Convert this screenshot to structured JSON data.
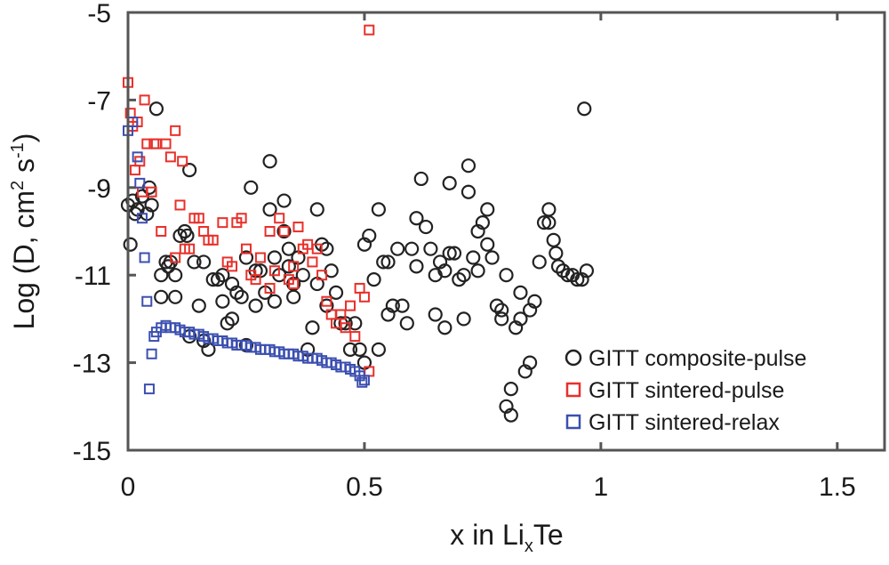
{
  "chart_data": {
    "type": "scatter",
    "title": "",
    "xlabel": {
      "main": "x in Li",
      "sub": "x",
      "tail": "Te"
    },
    "ylabel": {
      "main": "Log (D, cm",
      "sup1": "2",
      "mid": " s",
      "sup2": "-1",
      "end": ")"
    },
    "xlim": [
      0,
      1.6
    ],
    "ylim": [
      -15,
      -5
    ],
    "xticks": [
      {
        "v": 0,
        "label": "0"
      },
      {
        "v": 0.5,
        "label": "0.5"
      },
      {
        "v": 1,
        "label": "1"
      },
      {
        "v": 1.5,
        "label": "1.5"
      }
    ],
    "yticks": [
      {
        "v": -5,
        "label": "-5"
      },
      {
        "v": -7,
        "label": "-7"
      },
      {
        "v": -9,
        "label": "-9"
      },
      {
        "v": -11,
        "label": "-11"
      },
      {
        "v": -13,
        "label": "-13"
      },
      {
        "v": -15,
        "label": "-15"
      }
    ],
    "grid": false,
    "legend_position": "bottom-right",
    "series": [
      {
        "name": "GITT composite-pulse",
        "marker": "circle",
        "color": "#222222",
        "points": [
          [
            0.0,
            -9.4
          ],
          [
            0.005,
            -10.3
          ],
          [
            0.01,
            -9.3
          ],
          [
            0.015,
            -9.6
          ],
          [
            0.02,
            -9.5
          ],
          [
            0.03,
            -9.2
          ],
          [
            0.04,
            -9.6
          ],
          [
            0.045,
            -9.0
          ],
          [
            0.05,
            -9.4
          ],
          [
            0.06,
            -7.2
          ],
          [
            0.07,
            -11.0
          ],
          [
            0.07,
            -11.5
          ],
          [
            0.08,
            -10.7
          ],
          [
            0.085,
            -10.8
          ],
          [
            0.09,
            -10.7
          ],
          [
            0.1,
            -11.0
          ],
          [
            0.1,
            -11.5
          ],
          [
            0.11,
            -10.1
          ],
          [
            0.12,
            -10.0
          ],
          [
            0.125,
            -10.1
          ],
          [
            0.13,
            -8.6
          ],
          [
            0.13,
            -12.4
          ],
          [
            0.14,
            -10.7
          ],
          [
            0.15,
            -11.7
          ],
          [
            0.16,
            -10.7
          ],
          [
            0.16,
            -12.5
          ],
          [
            0.17,
            -12.7
          ],
          [
            0.18,
            -11.1
          ],
          [
            0.19,
            -11.1
          ],
          [
            0.2,
            -11.0
          ],
          [
            0.2,
            -11.6
          ],
          [
            0.21,
            -12.1
          ],
          [
            0.22,
            -12.0
          ],
          [
            0.22,
            -11.2
          ],
          [
            0.23,
            -11.4
          ],
          [
            0.24,
            -11.5
          ],
          [
            0.25,
            -10.6
          ],
          [
            0.25,
            -12.6
          ],
          [
            0.26,
            -9.0
          ],
          [
            0.27,
            -10.9
          ],
          [
            0.27,
            -11.7
          ],
          [
            0.28,
            -10.9
          ],
          [
            0.29,
            -11.4
          ],
          [
            0.3,
            -8.4
          ],
          [
            0.3,
            -9.5
          ],
          [
            0.31,
            -10.6
          ],
          [
            0.31,
            -11.6
          ],
          [
            0.32,
            -11.0
          ],
          [
            0.33,
            -9.3
          ],
          [
            0.33,
            -10.0
          ],
          [
            0.34,
            -10.4
          ],
          [
            0.34,
            -10.8
          ],
          [
            0.35,
            -11.2
          ],
          [
            0.35,
            -11.5
          ],
          [
            0.36,
            -10.6
          ],
          [
            0.37,
            -11.0
          ],
          [
            0.38,
            -12.7
          ],
          [
            0.39,
            -12.2
          ],
          [
            0.4,
            -9.5
          ],
          [
            0.4,
            -11.2
          ],
          [
            0.41,
            -10.3
          ],
          [
            0.42,
            -10.4
          ],
          [
            0.42,
            -11.7
          ],
          [
            0.43,
            -10.9
          ],
          [
            0.44,
            -11.4
          ],
          [
            0.45,
            -12.1
          ],
          [
            0.46,
            -12.1
          ],
          [
            0.47,
            -12.7
          ],
          [
            0.48,
            -12.1
          ],
          [
            0.49,
            -12.7
          ],
          [
            0.5,
            -13.0
          ],
          [
            0.5,
            -10.3
          ],
          [
            0.51,
            -10.1
          ],
          [
            0.52,
            -11.1
          ],
          [
            0.53,
            -9.5
          ],
          [
            0.53,
            -12.7
          ],
          [
            0.54,
            -10.7
          ],
          [
            0.55,
            -10.7
          ],
          [
            0.55,
            -11.9
          ],
          [
            0.56,
            -11.7
          ],
          [
            0.57,
            -10.4
          ],
          [
            0.58,
            -11.7
          ],
          [
            0.59,
            -12.1
          ],
          [
            0.6,
            -10.4
          ],
          [
            0.61,
            -9.7
          ],
          [
            0.61,
            -10.8
          ],
          [
            0.62,
            -8.8
          ],
          [
            0.63,
            -9.9
          ],
          [
            0.64,
            -10.4
          ],
          [
            0.65,
            -11.0
          ],
          [
            0.65,
            -11.9
          ],
          [
            0.66,
            -10.7
          ],
          [
            0.67,
            -10.9
          ],
          [
            0.67,
            -12.2
          ],
          [
            0.68,
            -8.9
          ],
          [
            0.68,
            -10.5
          ],
          [
            0.69,
            -10.5
          ],
          [
            0.7,
            -11.1
          ],
          [
            0.71,
            -11.0
          ],
          [
            0.71,
            -12.0
          ],
          [
            0.72,
            -9.1
          ],
          [
            0.72,
            -8.5
          ],
          [
            0.73,
            -10.6
          ],
          [
            0.74,
            -10.9
          ],
          [
            0.74,
            -10.0
          ],
          [
            0.75,
            -9.8
          ],
          [
            0.76,
            -9.5
          ],
          [
            0.76,
            -10.3
          ],
          [
            0.77,
            -10.6
          ],
          [
            0.78,
            -11.7
          ],
          [
            0.79,
            -11.8
          ],
          [
            0.79,
            -12.0
          ],
          [
            0.8,
            -11.0
          ],
          [
            0.8,
            -14.0
          ],
          [
            0.81,
            -14.2
          ],
          [
            0.81,
            -13.6
          ],
          [
            0.82,
            -12.2
          ],
          [
            0.83,
            -11.4
          ],
          [
            0.83,
            -12.0
          ],
          [
            0.84,
            -13.2
          ],
          [
            0.85,
            -13.0
          ],
          [
            0.85,
            -11.8
          ],
          [
            0.86,
            -11.6
          ],
          [
            0.87,
            -10.7
          ],
          [
            0.88,
            -9.8
          ],
          [
            0.89,
            -9.5
          ],
          [
            0.89,
            -9.8
          ],
          [
            0.9,
            -10.2
          ],
          [
            0.905,
            -10.5
          ],
          [
            0.91,
            -10.8
          ],
          [
            0.92,
            -10.9
          ],
          [
            0.93,
            -11.0
          ],
          [
            0.94,
            -11.0
          ],
          [
            0.95,
            -11.1
          ],
          [
            0.96,
            -11.1
          ],
          [
            0.965,
            -7.2
          ],
          [
            0.97,
            -10.9
          ]
        ]
      },
      {
        "name": "GITT sintered-pulse",
        "marker": "square",
        "color": "#e8302a",
        "points": [
          [
            0.0,
            -6.6
          ],
          [
            0.005,
            -7.3
          ],
          [
            0.01,
            -7.6
          ],
          [
            0.015,
            -8.6
          ],
          [
            0.02,
            -7.5
          ],
          [
            0.025,
            -8.4
          ],
          [
            0.03,
            -9.1
          ],
          [
            0.035,
            -7.0
          ],
          [
            0.04,
            -8.0
          ],
          [
            0.05,
            -9.1
          ],
          [
            0.055,
            -8.0
          ],
          [
            0.06,
            -8.0
          ],
          [
            0.07,
            -10.0
          ],
          [
            0.08,
            -8.0
          ],
          [
            0.09,
            -8.3
          ],
          [
            0.1,
            -7.7
          ],
          [
            0.1,
            -10.6
          ],
          [
            0.11,
            -9.4
          ],
          [
            0.115,
            -8.4
          ],
          [
            0.12,
            -10.4
          ],
          [
            0.13,
            -10.4
          ],
          [
            0.14,
            -9.7
          ],
          [
            0.15,
            -9.7
          ],
          [
            0.16,
            -10.0
          ],
          [
            0.17,
            -10.2
          ],
          [
            0.18,
            -10.2
          ],
          [
            0.2,
            -9.8
          ],
          [
            0.21,
            -10.7
          ],
          [
            0.22,
            -10.8
          ],
          [
            0.23,
            -9.8
          ],
          [
            0.24,
            -9.7
          ],
          [
            0.25,
            -10.4
          ],
          [
            0.26,
            -11.0
          ],
          [
            0.27,
            -11.1
          ],
          [
            0.28,
            -10.6
          ],
          [
            0.3,
            -11.3
          ],
          [
            0.3,
            -10.0
          ],
          [
            0.31,
            -10.9
          ],
          [
            0.32,
            -9.7
          ],
          [
            0.33,
            -10.0
          ],
          [
            0.34,
            -11.1
          ],
          [
            0.35,
            -11.2
          ],
          [
            0.35,
            -10.8
          ],
          [
            0.36,
            -9.9
          ],
          [
            0.37,
            -10.4
          ],
          [
            0.38,
            -10.3
          ],
          [
            0.39,
            -10.7
          ],
          [
            0.4,
            -10.4
          ],
          [
            0.41,
            -11.0
          ],
          [
            0.42,
            -11.6
          ],
          [
            0.43,
            -11.9
          ],
          [
            0.44,
            -12.1
          ],
          [
            0.45,
            -11.9
          ],
          [
            0.46,
            -12.2
          ],
          [
            0.47,
            -11.7
          ],
          [
            0.48,
            -12.4
          ],
          [
            0.49,
            -11.3
          ],
          [
            0.5,
            -11.5
          ],
          [
            0.51,
            -13.2
          ],
          [
            0.51,
            -5.4
          ]
        ]
      },
      {
        "name": "GITT sintered-relax",
        "marker": "square",
        "color": "#3b4fb0",
        "points": [
          [
            0.0,
            -7.7
          ],
          [
            0.01,
            -7.5
          ],
          [
            0.02,
            -8.3
          ],
          [
            0.025,
            -8.9
          ],
          [
            0.03,
            -9.7
          ],
          [
            0.035,
            -10.6
          ],
          [
            0.04,
            -11.6
          ],
          [
            0.045,
            -13.6
          ],
          [
            0.05,
            -12.8
          ],
          [
            0.055,
            -12.4
          ],
          [
            0.06,
            -12.3
          ],
          [
            0.07,
            -12.2
          ],
          [
            0.08,
            -12.15
          ],
          [
            0.09,
            -12.2
          ],
          [
            0.1,
            -12.2
          ],
          [
            0.11,
            -12.25
          ],
          [
            0.12,
            -12.3
          ],
          [
            0.13,
            -12.3
          ],
          [
            0.14,
            -12.35
          ],
          [
            0.15,
            -12.35
          ],
          [
            0.16,
            -12.4
          ],
          [
            0.17,
            -12.45
          ],
          [
            0.18,
            -12.45
          ],
          [
            0.19,
            -12.5
          ],
          [
            0.2,
            -12.5
          ],
          [
            0.21,
            -12.55
          ],
          [
            0.22,
            -12.55
          ],
          [
            0.23,
            -12.6
          ],
          [
            0.24,
            -12.6
          ],
          [
            0.25,
            -12.6
          ],
          [
            0.26,
            -12.65
          ],
          [
            0.27,
            -12.65
          ],
          [
            0.28,
            -12.7
          ],
          [
            0.29,
            -12.7
          ],
          [
            0.3,
            -12.7
          ],
          [
            0.31,
            -12.75
          ],
          [
            0.32,
            -12.75
          ],
          [
            0.33,
            -12.8
          ],
          [
            0.34,
            -12.8
          ],
          [
            0.35,
            -12.8
          ],
          [
            0.36,
            -12.85
          ],
          [
            0.37,
            -12.85
          ],
          [
            0.38,
            -12.9
          ],
          [
            0.39,
            -12.9
          ],
          [
            0.4,
            -12.9
          ],
          [
            0.41,
            -12.95
          ],
          [
            0.42,
            -13.0
          ],
          [
            0.43,
            -13.0
          ],
          [
            0.44,
            -13.05
          ],
          [
            0.45,
            -13.1
          ],
          [
            0.46,
            -13.1
          ],
          [
            0.47,
            -13.15
          ],
          [
            0.48,
            -13.2
          ],
          [
            0.49,
            -13.3
          ],
          [
            0.495,
            -13.45
          ],
          [
            0.5,
            -13.4
          ]
        ]
      }
    ]
  }
}
